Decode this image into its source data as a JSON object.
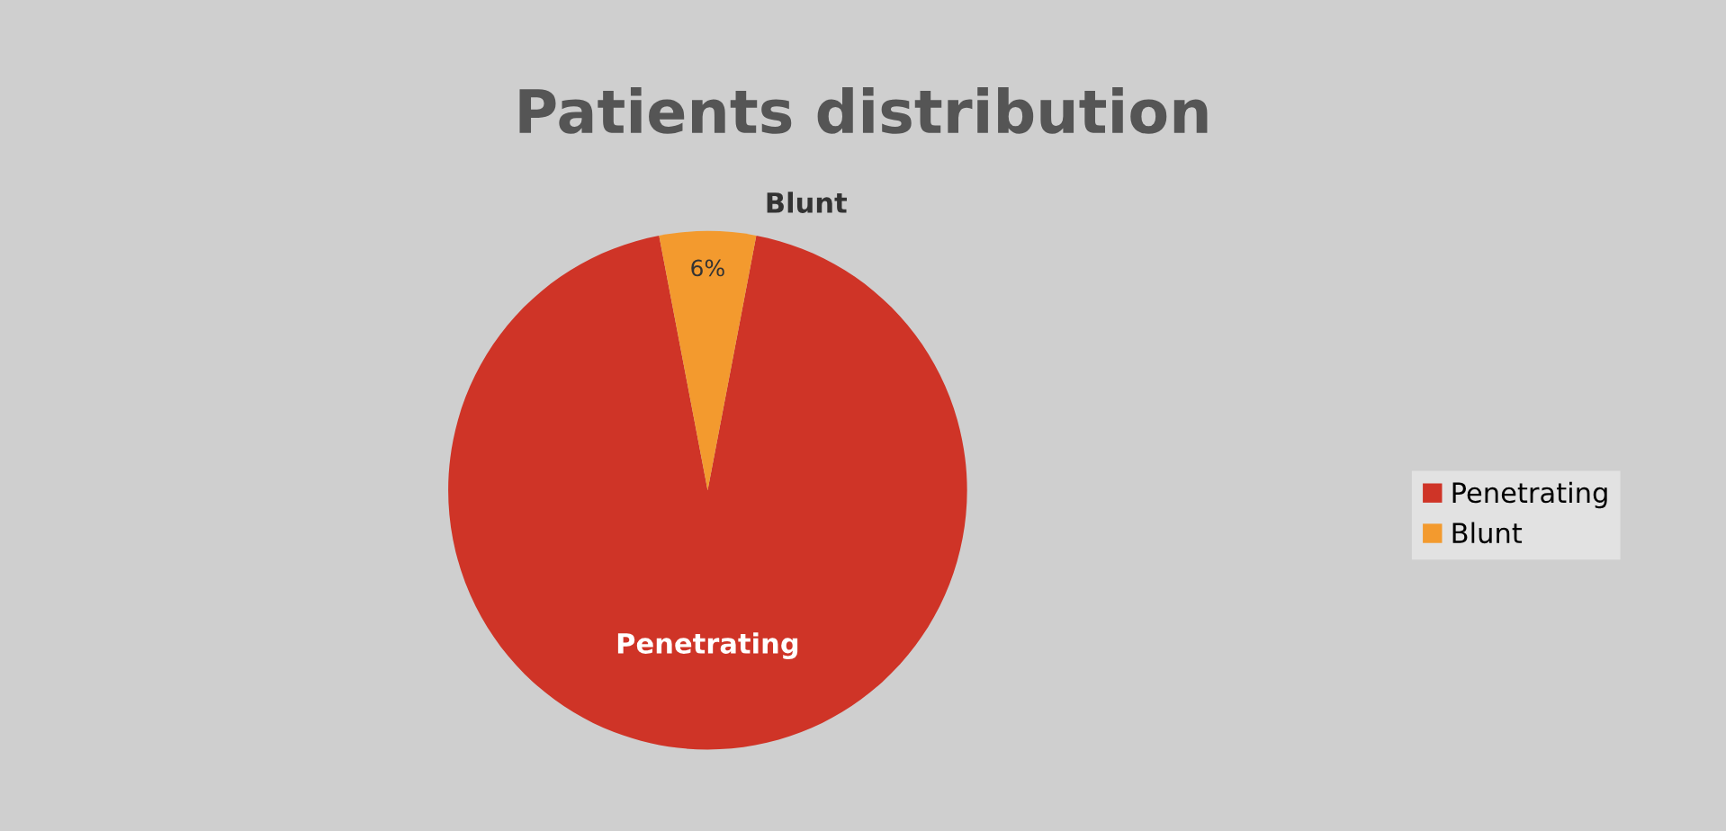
{
  "chart_data": {
    "type": "pie",
    "title": "Patients distribution",
    "categories": [
      "Penetrating",
      "Blunt"
    ],
    "values": [
      94,
      6
    ],
    "colors": [
      "#cf3427",
      "#f39a2e"
    ],
    "value_labels": [
      null,
      "6%"
    ],
    "legend": "right"
  }
}
